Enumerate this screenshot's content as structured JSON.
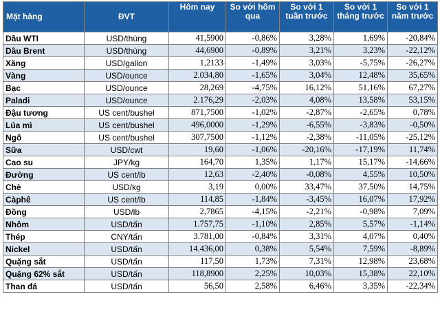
{
  "headers": {
    "item": "Mặt hàng",
    "unit": "ĐVT",
    "today": "Hôm nay",
    "vs_yesterday": "So với hôm qua",
    "vs_week": "So với 1 tuần trước",
    "vs_month": "So với 1 tháng trước",
    "vs_year": "So với 1 năm trước"
  },
  "rows": [
    {
      "name": "Dầu WTI",
      "unit": "USD/thùng",
      "today": "41,5900",
      "d": "-0,86%",
      "w": "3,28%",
      "m": "1,69%",
      "y": "-20,84%"
    },
    {
      "name": "Dầu Brent",
      "unit": "USD/thùng",
      "today": "44,6900",
      "d": "-0,89%",
      "w": "3,21%",
      "m": "3,23%",
      "y": "-22,12%"
    },
    {
      "name": "Xăng",
      "unit": "USD/gallon",
      "today": "1,2133",
      "d": "-1,49%",
      "w": "3,03%",
      "m": "-5,75%",
      "y": "-26,27%"
    },
    {
      "name": "Vàng",
      "unit": "USD/ounce",
      "today": "2.034,80",
      "d": "-1,65%",
      "w": "3,04%",
      "m": "12,48%",
      "y": "35,65%"
    },
    {
      "name": "Bạc",
      "unit": "USD/ounce",
      "today": "28,269",
      "d": "-4,75%",
      "w": "16,12%",
      "m": "51,16%",
      "y": "67,27%"
    },
    {
      "name": "Paladi",
      "unit": "USD/ounce",
      "today": "2.176,29",
      "d": "-2,03%",
      "w": "4,08%",
      "m": "13,58%",
      "y": "53,15%"
    },
    {
      "name": "Đậu tương",
      "unit": "US cent/bushel",
      "today": "871,7500",
      "d": "-1,02%",
      "w": "-2,87%",
      "m": "-2,65%",
      "y": "0,78%"
    },
    {
      "name": "Lúa mì",
      "unit": "US cent/bushel",
      "today": "496,0000",
      "d": "-1,29%",
      "w": "-6,55%",
      "m": "-3,83%",
      "y": "-0,50%"
    },
    {
      "name": "Ngô",
      "unit": "US cent/bushel",
      "today": "307,7500",
      "d": "-1,12%",
      "w": "-2,38%",
      "m": "-11,05%",
      "y": "-25,12%"
    },
    {
      "name": "Sữa",
      "unit": "USD/cwt",
      "today": "19,60",
      "d": "-1,06%",
      "w": "-20,16%",
      "m": "-17,19%",
      "y": "11,74%"
    },
    {
      "name": "Cao su",
      "unit": "JPY/kg",
      "today": "164,70",
      "d": "1,35%",
      "w": "1,17%",
      "m": "15,17%",
      "y": "-14,66%"
    },
    {
      "name": "Đường",
      "unit": "US cent/lb",
      "today": "12,63",
      "d": "-2,40%",
      "w": "-0,08%",
      "m": "4,55%",
      "y": "10,50%"
    },
    {
      "name": "Chè",
      "unit": "USD/kg",
      "today": "3,19",
      "d": "0,00%",
      "w": "33,47%",
      "m": "37,50%",
      "y": "14,75%"
    },
    {
      "name": "Càphê",
      "unit": "US cent/lb",
      "today": "114,85",
      "d": "-1,84%",
      "w": "-3,45%",
      "m": "16,07%",
      "y": "17,92%"
    },
    {
      "name": "Đồng",
      "unit": "USD/lb",
      "today": "2,7865",
      "d": "-4,15%",
      "w": "-2,21%",
      "m": "-0,98%",
      "y": "7,09%"
    },
    {
      "name": "Nhôm",
      "unit": "USD/tấn",
      "today": "1.757,75",
      "d": "-1,10%",
      "w": "2,85%",
      "m": "5,57%",
      "y": "-1,14%"
    },
    {
      "name": "Thép",
      "unit": "CNY/tấn",
      "today": "3.781,00",
      "d": "-0,84%",
      "w": "3,31%",
      "m": "4,07%",
      "y": "0,40%"
    },
    {
      "name": "Nickel",
      "unit": "USD/tấn",
      "today": "14.436,00",
      "d": "0,38%",
      "w": "5,54%",
      "m": "7,59%",
      "y": "-8,89%"
    },
    {
      "name": "Quặng sắt",
      "unit": "USD/tấn",
      "today": "117,50",
      "d": "1,73%",
      "w": "7,31%",
      "m": "12,98%",
      "y": "23,68%"
    },
    {
      "name": "Quặng 62% sắt",
      "unit": "USD/tấn",
      "today": "118,8900",
      "d": "2,25%",
      "w": "10,03%",
      "m": "15,38%",
      "y": "22,10%"
    },
    {
      "name": "Than đá",
      "unit": "USD/tấn",
      "today": "56,50",
      "d": "2,58%",
      "w": "6,46%",
      "m": "3,35%",
      "y": "-22,34%"
    }
  ]
}
